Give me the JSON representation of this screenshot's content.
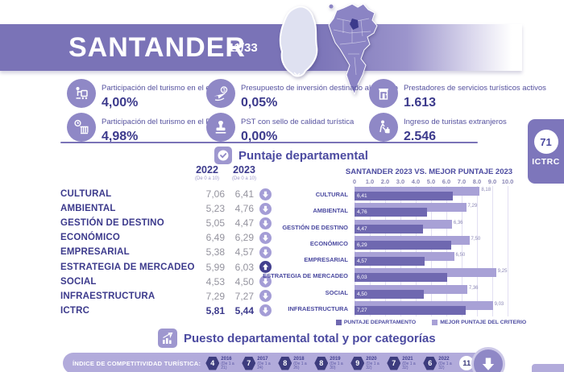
{
  "header": {
    "title": "SANTANDER",
    "rank": "11/33"
  },
  "badge": {
    "value": "71",
    "label": "ICTRC"
  },
  "stats": [
    {
      "icon": "bellhop-luggage-icon",
      "label": "Participación del turismo en el empleo",
      "value": "4,00%"
    },
    {
      "icon": "pib-bank-clock-icon",
      "label": "Participación del turismo en el PIB",
      "value": "4,98%"
    },
    {
      "icon": "plane-money-icon",
      "label": "Presupuesto de inversión destinado al turismo",
      "value": "0,05%"
    },
    {
      "icon": "quality-stamp-icon",
      "label": "PST con sello de calidad turística",
      "value": "0,00%"
    },
    {
      "icon": "storefront-icon",
      "label": "Prestadores de servicios turísticos activos",
      "value": "1.613"
    },
    {
      "icon": "traveler-suitcase-icon",
      "label": "Ingreso de turistas extranjeros",
      "value": "2.546"
    }
  ],
  "score_section": {
    "title": "Puntaje departamental",
    "columns": [
      {
        "year": "2022",
        "scale": "(De 0 a 10)"
      },
      {
        "year": "2023",
        "scale": "(De 0 a 10)"
      }
    ],
    "rows": [
      {
        "label": "CULTURAL",
        "v2022": "7,06",
        "v2023": "6,41",
        "trend": "down",
        "bold": false
      },
      {
        "label": "AMBIENTAL",
        "v2022": "5,23",
        "v2023": "4,76",
        "trend": "down",
        "bold": false
      },
      {
        "label": "GESTIÓN DE DESTINO",
        "v2022": "5,05",
        "v2023": "4,47",
        "trend": "down",
        "bold": false
      },
      {
        "label": "ECONÓMICO",
        "v2022": "6,49",
        "v2023": "6,29",
        "trend": "down",
        "bold": false
      },
      {
        "label": "EMPRESARIAL",
        "v2022": "5,38",
        "v2023": "4,57",
        "trend": "down",
        "bold": false
      },
      {
        "label": "ESTRATEGIA DE MERCADEO",
        "v2022": "5,99",
        "v2023": "6,03",
        "trend": "up",
        "bold": false
      },
      {
        "label": "SOCIAL",
        "v2022": "4,53",
        "v2023": "4,50",
        "trend": "down",
        "bold": false
      },
      {
        "label": "INFRAESTRUCTURA",
        "v2022": "7,29",
        "v2023": "7,27",
        "trend": "down",
        "bold": false
      },
      {
        "label": "ICTRC",
        "v2022": "5,81",
        "v2023": "5,44",
        "trend": "down",
        "bold": true
      }
    ]
  },
  "chart_data": {
    "type": "bar",
    "orientation": "horizontal",
    "title": "SANTANDER 2023 VS. MEJOR PUNTAJE 2023",
    "categories": [
      "CULTURAL",
      "AMBIENTAL",
      "GESTIÓN DE DESTINO",
      "ECONÓMICO",
      "EMPRESARIAL",
      "ESTRATEGIA DE MERCADEO",
      "SOCIAL",
      "INFRAESTRUCTURA"
    ],
    "series": [
      {
        "name": "PUNTAJE DEPARTAMENTO",
        "color": "#6f68b0",
        "values": [
          6.41,
          4.76,
          4.47,
          6.29,
          4.57,
          6.03,
          4.5,
          7.27
        ],
        "labels": [
          "6,41",
          "4,76",
          "4,47",
          "6,29",
          "4,57",
          "6,03",
          "4,50",
          "7,27"
        ]
      },
      {
        "name": "MEJOR PUNTAJE DEL CRITERIO",
        "color": "#a8a1d6",
        "values": [
          8.18,
          7.29,
          6.36,
          7.5,
          6.5,
          9.25,
          7.36,
          9.03
        ],
        "labels": [
          "8,18",
          "7,29",
          "6,36",
          "7,50",
          "6,50",
          "9,25",
          "7,36",
          "9,03"
        ]
      }
    ],
    "xlim": [
      0,
      10
    ],
    "x_ticks": [
      "0",
      "1.0",
      "2.0",
      "3.0",
      "4.0",
      "5.0",
      "6.0",
      "7.0",
      "8.0",
      "9.0",
      "10.0"
    ],
    "grid": true,
    "legend_position": "bottom"
  },
  "ranking_section": {
    "title": "Puesto departamental total y por categorías",
    "bar_label": "ÍNDICE DE COMPETITIVIDAD TURÍSTICA:",
    "items": [
      {
        "rank": "4",
        "year": "2016",
        "scale": "(De 1 a 21)",
        "highlight": false
      },
      {
        "rank": "7",
        "year": "2017",
        "scale": "(De 1 a 24)",
        "highlight": false
      },
      {
        "rank": "8",
        "year": "2018",
        "scale": "(De 1 a 26)",
        "highlight": false
      },
      {
        "rank": "8",
        "year": "2019",
        "scale": "(De 1 a 30)",
        "highlight": false
      },
      {
        "rank": "9",
        "year": "2020",
        "scale": "(De 1 a 32)",
        "highlight": false
      },
      {
        "rank": "7",
        "year": "2021",
        "scale": "(De 1 a 32)",
        "highlight": false
      },
      {
        "rank": "6",
        "year": "2022",
        "scale": "(De 1 a 32)",
        "highlight": false
      },
      {
        "rank": "11",
        "year": "2023",
        "scale": "(De 1 a 33)",
        "highlight": true
      }
    ],
    "trend": "down"
  },
  "colors": {
    "primary": "#7a73b7",
    "bar_dept": "#6f68b0",
    "bar_best": "#a8a1d6",
    "dark_navy": "#3d3c7e",
    "icon_circle": "#8f88c6",
    "pill_bg": "#b2abdb"
  }
}
